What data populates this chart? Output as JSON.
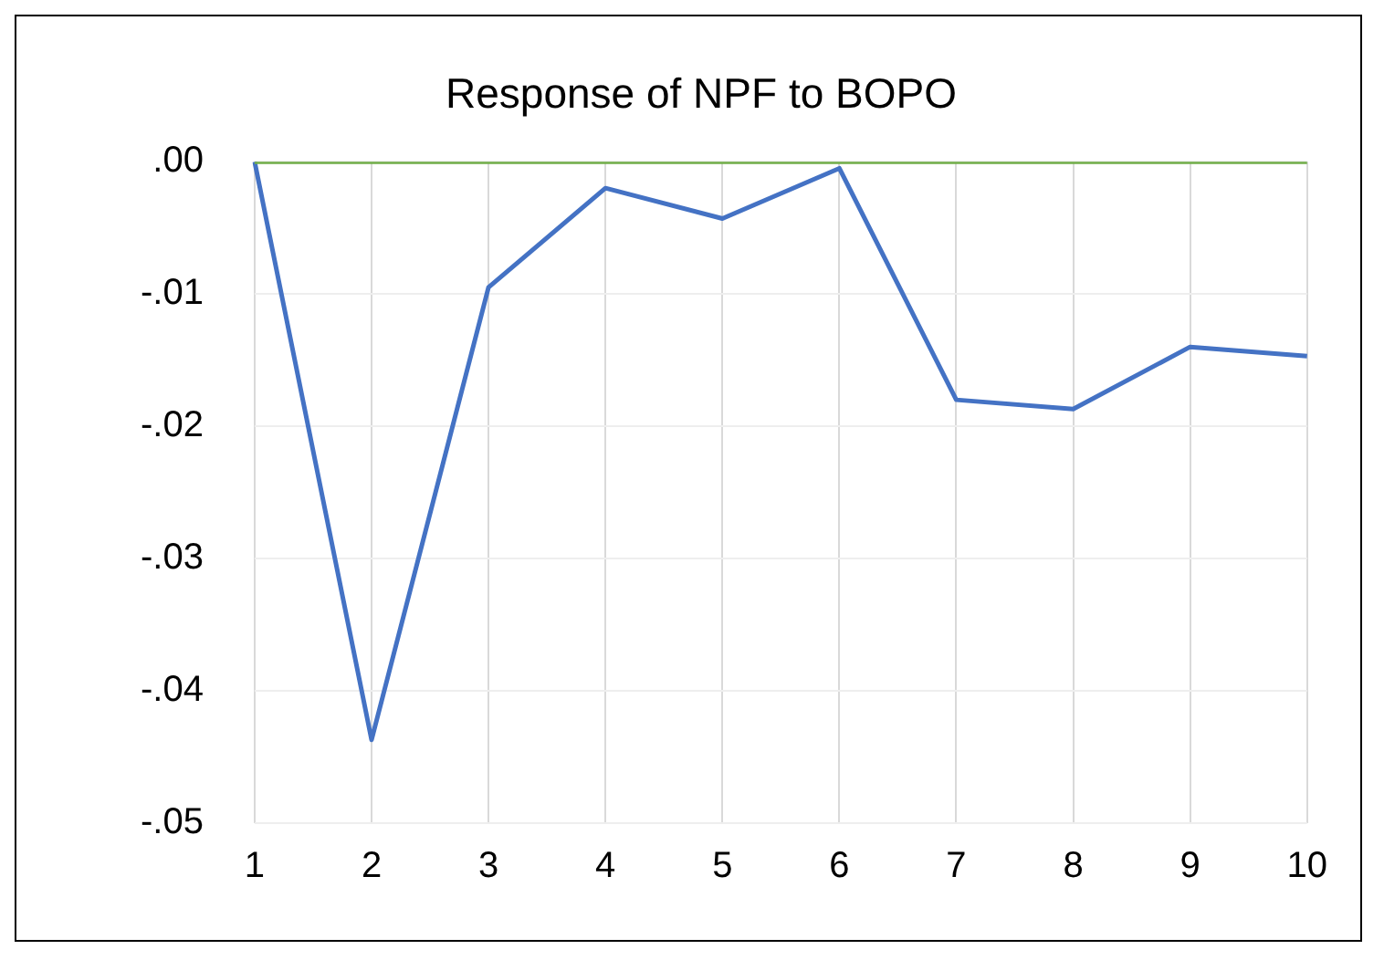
{
  "chart_data": {
    "type": "line",
    "title": "Response of NPF to BOPO",
    "categories": [
      "1",
      "2",
      "3",
      "4",
      "5",
      "6",
      "7",
      "8",
      "9",
      "10"
    ],
    "series": [
      {
        "color": "#4472c4",
        "values": [
          0,
          -0.0437,
          -0.0095,
          -0.002,
          -0.0043,
          -0.0005,
          -0.018,
          -0.0187,
          -0.014,
          -0.0147
        ]
      },
      {
        "color": "#70ad47",
        "values": [
          0,
          0,
          0,
          0,
          0,
          0,
          0,
          0,
          0,
          0
        ]
      }
    ],
    "ylim": [
      -0.05,
      0
    ],
    "yticks": [
      {
        "value": 0,
        "label": ".00"
      },
      {
        "value": -0.01,
        "label": "-.01"
      },
      {
        "value": -0.02,
        "label": "-.02"
      },
      {
        "value": -0.03,
        "label": "-.03"
      },
      {
        "value": -0.04,
        "label": "-.04"
      },
      {
        "value": -0.05,
        "label": "-.05"
      }
    ],
    "grid": true,
    "legend": false,
    "marker": "none",
    "line_style": "solid"
  }
}
